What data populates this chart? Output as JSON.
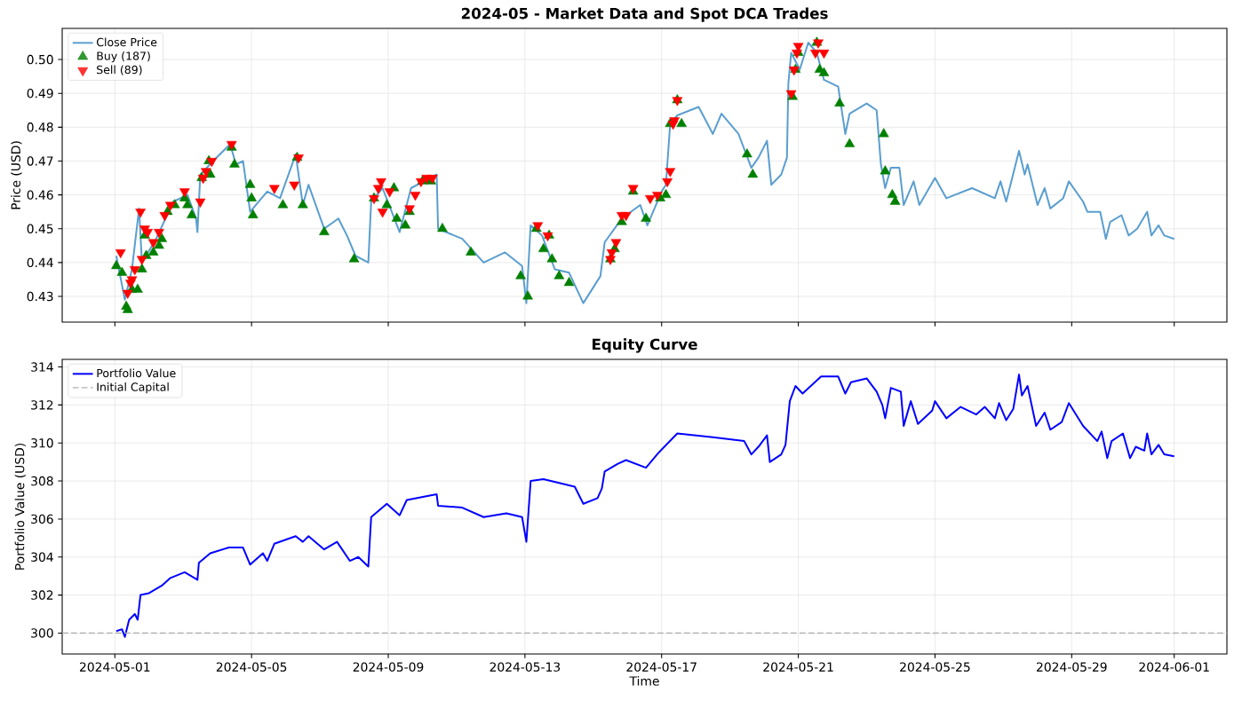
{
  "chart_data": [
    {
      "type": "line",
      "title": "2024-05 - Market Data and Spot DCA Trades",
      "ylabel": "Price (USD)",
      "xlim": [
        "2024-04-29T11:00",
        "2024-06-02T13:00"
      ],
      "ylim": [
        0.4224,
        0.5092
      ],
      "xticks": [
        "2024-05-01",
        "2024-05-05",
        "2024-05-09",
        "2024-05-13",
        "2024-05-17",
        "2024-05-21",
        "2024-05-25",
        "2024-05-29",
        "2024-06-01"
      ],
      "yticks": [
        0.43,
        0.44,
        0.45,
        0.46,
        0.47,
        0.48,
        0.49,
        {
          "value": 0.5,
          "label": "0.50"
        }
      ],
      "tick_labels": "y",
      "grid": true,
      "legend": "top left",
      "series": [
        {
          "name": "Close Price",
          "color": "#5a9ecf",
          "marker": "none",
          "line_style": "solid",
          "x": [
            "2024-05-01T01:00",
            "2024-05-01T07:00",
            "2024-05-01T12:00",
            "2024-05-01T17:00",
            "2024-05-01T19:00",
            "2024-05-02T05:00",
            "2024-05-02T17:00",
            "2024-05-03T03:00",
            "2024-05-03T09:00",
            "2024-05-03T10:00",
            "2024-05-03T12:00",
            "2024-05-03T21:00",
            "2024-05-04T09:00",
            "2024-05-04T13:00",
            "2024-05-04T18:00",
            "2024-05-04T23:00",
            "2024-05-05T11:00",
            "2024-05-05T20:00",
            "2024-05-06T07:00",
            "2024-05-06T12:00",
            "2024-05-06T16:00",
            "2024-05-07T03:00",
            "2024-05-07T13:00",
            "2024-05-07T19:00",
            "2024-05-08T01:00",
            "2024-05-08T10:00",
            "2024-05-08T12:00",
            "2024-05-08T20:00",
            "2024-05-09T08:00",
            "2024-05-09T16:00",
            "2024-05-10T10:00",
            "2024-05-10T11:00",
            "2024-05-11T04:00",
            "2024-05-11T19:00",
            "2024-05-12T10:00",
            "2024-05-12T22:00",
            "2024-05-13T01:00",
            "2024-05-13T04:00",
            "2024-05-13T12:00",
            "2024-05-13T21:00",
            "2024-05-14T07:00",
            "2024-05-14T17:00",
            "2024-05-15T05:00",
            "2024-05-15T08:00",
            "2024-05-15T20:00",
            "2024-05-16T09:00",
            "2024-05-16T14:00",
            "2024-05-17T00:00",
            "2024-05-17T03:00",
            "2024-05-17T06:00",
            "2024-05-17T11:00",
            "2024-05-18T02:00",
            "2024-05-18T12:00",
            "2024-05-18T18:00",
            "2024-05-19T06:00",
            "2024-05-19T15:00",
            "2024-05-19T20:00",
            "2024-05-20T02:00",
            "2024-05-20T05:00",
            "2024-05-20T12:00",
            "2024-05-20T16:00",
            "2024-05-20T17:00",
            "2024-05-20T19:00",
            "2024-05-21T01:00",
            "2024-05-21T07:00",
            "2024-05-21T13:00",
            "2024-05-21T18:00",
            "2024-05-22T04:00",
            "2024-05-22T09:00",
            "2024-05-22T12:00",
            "2024-05-23T00:00",
            "2024-05-23T07:00",
            "2024-05-23T10:00",
            "2024-05-23T13:00",
            "2024-05-23T17:00",
            "2024-05-23T23:00",
            "2024-05-24T02:00",
            "2024-05-24T09:00",
            "2024-05-24T13:00",
            "2024-05-25T00:00",
            "2024-05-25T08:00",
            "2024-05-26T02:00",
            "2024-05-26T18:00",
            "2024-05-26T22:00",
            "2024-05-27T02:00",
            "2024-05-27T11:00",
            "2024-05-27T15:00",
            "2024-05-27T17:00",
            "2024-05-28T00:00",
            "2024-05-28T05:00",
            "2024-05-28T09:00",
            "2024-05-28T18:00",
            "2024-05-28T22:00",
            "2024-05-29T08:00",
            "2024-05-29T11:00",
            "2024-05-29T20:00",
            "2024-05-30T00:00",
            "2024-05-30T03:00",
            "2024-05-30T11:00",
            "2024-05-30T16:00",
            "2024-05-30T22:00",
            "2024-05-31T05:00",
            "2024-05-31T08:00",
            "2024-05-31T13:00",
            "2024-05-31T17:00",
            "2024-06-01T00:00"
          ],
          "values": [
            0.442,
            0.429,
            0.438,
            0.456,
            0.44,
            0.447,
            0.458,
            0.46,
            0.453,
            0.449,
            0.466,
            0.47,
            0.475,
            0.469,
            0.47,
            0.455,
            0.461,
            0.459,
            0.472,
            0.457,
            0.463,
            0.45,
            0.453,
            0.448,
            0.442,
            0.44,
            0.458,
            0.462,
            0.449,
            0.462,
            0.466,
            0.45,
            0.447,
            0.44,
            0.443,
            0.439,
            0.428,
            0.451,
            0.448,
            0.438,
            0.437,
            0.428,
            0.436,
            0.446,
            0.453,
            0.457,
            0.451,
            0.461,
            0.463,
            0.481,
            0.4835,
            0.486,
            0.478,
            0.484,
            0.478,
            0.468,
            0.471,
            0.476,
            0.463,
            0.466,
            0.471,
            0.493,
            0.502,
            0.497,
            0.505,
            0.502,
            0.494,
            0.492,
            0.478,
            0.484,
            0.487,
            0.485,
            0.469,
            0.462,
            0.468,
            0.468,
            0.457,
            0.464,
            0.457,
            0.465,
            0.459,
            0.462,
            0.459,
            0.464,
            0.458,
            0.473,
            0.466,
            0.469,
            0.457,
            0.462,
            0.456,
            0.459,
            0.464,
            0.458,
            0.455,
            0.455,
            0.447,
            0.452,
            0.454,
            0.448,
            0.45,
            0.455,
            0.448,
            0.451,
            0.448,
            0.447
          ]
        },
        {
          "name": "Buy (187)",
          "type": "scatter",
          "color": "#008000",
          "marker": "triangle",
          "x": [
            "2024-05-01T01:00",
            "2024-05-01T05:00",
            "2024-05-01T08:00",
            "2024-05-01T09:00",
            "2024-05-01T12:00",
            "2024-05-01T16:00",
            "2024-05-01T19:00",
            "2024-05-01T21:00",
            "2024-05-01T22:00",
            "2024-05-02T03:00",
            "2024-05-02T07:00",
            "2024-05-02T09:00",
            "2024-05-02T13:00",
            "2024-05-02T18:00",
            "2024-05-03T01:00",
            "2024-05-03T03:00",
            "2024-05-03T06:00",
            "2024-05-03T13:00",
            "2024-05-03T18:00",
            "2024-05-03T19:00",
            "2024-05-04T10:00",
            "2024-05-04T12:00",
            "2024-05-04T23:00",
            "2024-05-05T00:00",
            "2024-05-05T01:00",
            "2024-05-05T22:00",
            "2024-05-06T08:00",
            "2024-05-06T12:00",
            "2024-05-07T03:00",
            "2024-05-08T00:00",
            "2024-05-08T14:00",
            "2024-05-08T23:00",
            "2024-05-09T04:00",
            "2024-05-09T06:00",
            "2024-05-09T12:00",
            "2024-05-09T15:00",
            "2024-05-10T00:00",
            "2024-05-10T06:00",
            "2024-05-10T14:00",
            "2024-05-11T10:00",
            "2024-05-12T21:00",
            "2024-05-13T02:00",
            "2024-05-13T08:00",
            "2024-05-13T13:00",
            "2024-05-13T17:00",
            "2024-05-13T19:00",
            "2024-05-14T00:00",
            "2024-05-14T07:00",
            "2024-05-15T12:00",
            "2024-05-15T15:00",
            "2024-05-15T20:00",
            "2024-05-16T04:00",
            "2024-05-16T13:00",
            "2024-05-16T23:00",
            "2024-05-17T03:00",
            "2024-05-17T06:00",
            "2024-05-17T11:00",
            "2024-05-17T14:00",
            "2024-05-19T12:00",
            "2024-05-19T16:00",
            "2024-05-20T20:00",
            "2024-05-20T22:00",
            "2024-05-21T00:00",
            "2024-05-21T13:00",
            "2024-05-21T15:00",
            "2024-05-21T18:00",
            "2024-05-22T05:00",
            "2024-05-22T12:00",
            "2024-05-23T12:00",
            "2024-05-23T13:00",
            "2024-05-23T18:00",
            "2024-05-23T20:00"
          ],
          "values": [
            0.439,
            0.437,
            0.427,
            0.426,
            0.432,
            0.432,
            0.438,
            0.448,
            0.442,
            0.443,
            0.445,
            0.447,
            0.455,
            0.457,
            0.459,
            0.457,
            0.454,
            0.465,
            0.47,
            0.466,
            0.474,
            0.469,
            0.463,
            0.459,
            0.454,
            0.457,
            0.471,
            0.457,
            0.449,
            0.441,
            0.459,
            0.457,
            0.462,
            0.453,
            0.451,
            0.455,
            0.464,
            0.464,
            0.45,
            0.443,
            0.436,
            0.43,
            0.45,
            0.444,
            0.448,
            0.441,
            0.436,
            0.434,
            0.441,
            0.444,
            0.452,
            0.461,
            0.453,
            0.459,
            0.46,
            0.481,
            0.488,
            0.481,
            0.472,
            0.466,
            0.489,
            0.497,
            0.502,
            0.505,
            0.497,
            0.496,
            0.487,
            0.475,
            0.478,
            0.467,
            0.46,
            0.458
          ]
        },
        {
          "name": "Sell (89)",
          "type": "scatter",
          "color": "#ff0000",
          "marker": "triangle_down",
          "x": [
            "2024-05-01T04:00",
            "2024-05-01T09:00",
            "2024-05-01T11:00",
            "2024-05-01T12:00",
            "2024-05-01T14:00",
            "2024-05-01T18:00",
            "2024-05-01T19:00",
            "2024-05-01T21:00",
            "2024-05-01T23:00",
            "2024-05-02T03:00",
            "2024-05-02T07:00",
            "2024-05-02T11:00",
            "2024-05-02T15:00",
            "2024-05-03T01:00",
            "2024-05-03T12:00",
            "2024-05-03T14:00",
            "2024-05-03T16:00",
            "2024-05-03T20:00",
            "2024-05-04T10:00",
            "2024-05-05T16:00",
            "2024-05-06T06:00",
            "2024-05-06T09:00",
            "2024-05-08T14:00",
            "2024-05-08T17:00",
            "2024-05-08T19:00",
            "2024-05-08T20:00",
            "2024-05-09T01:00",
            "2024-05-09T15:00",
            "2024-05-09T19:00",
            "2024-05-09T23:00",
            "2024-05-10T03:00",
            "2024-05-10T07:00",
            "2024-05-13T09:00",
            "2024-05-13T16:00",
            "2024-05-15T12:00",
            "2024-05-15T13:00",
            "2024-05-15T16:00",
            "2024-05-15T20:00",
            "2024-05-15T23:00",
            "2024-05-16T04:00",
            "2024-05-16T16:00",
            "2024-05-16T21:00",
            "2024-05-17T04:00",
            "2024-05-17T06:00",
            "2024-05-17T08:00",
            "2024-05-17T09:00",
            "2024-05-17T11:00",
            "2024-05-20T19:00",
            "2024-05-20T21:00",
            "2024-05-20T23:00",
            "2024-05-21T00:00",
            "2024-05-21T12:00",
            "2024-05-21T14:00",
            "2024-05-21T18:00"
          ],
          "values": [
            0.443,
            0.431,
            0.434,
            0.435,
            0.438,
            0.455,
            0.441,
            0.45,
            0.449,
            0.446,
            0.449,
            0.454,
            0.457,
            0.461,
            0.458,
            0.465,
            0.467,
            0.47,
            0.475,
            0.462,
            0.463,
            0.471,
            0.459,
            0.462,
            0.464,
            0.455,
            0.461,
            0.456,
            0.46,
            0.464,
            0.465,
            0.465,
            0.451,
            0.448,
            0.441,
            0.443,
            0.446,
            0.454,
            0.454,
            0.462,
            0.459,
            0.46,
            0.464,
            0.467,
            0.481,
            0.482,
            0.488,
            0.49,
            0.497,
            0.502,
            0.504,
            0.502,
            0.505,
            0.502
          ]
        }
      ]
    },
    {
      "type": "line",
      "title": "Equity Curve",
      "xlabel": "Time",
      "ylabel": "Portfolio Value (USD)",
      "xlim": [
        "2024-04-29T11:00",
        "2024-06-02T13:00"
      ],
      "ylim": [
        298.9,
        314.4
      ],
      "xticks": [
        "2024-05-01",
        "2024-05-05",
        "2024-05-09",
        "2024-05-13",
        "2024-05-17",
        "2024-05-21",
        "2024-05-25",
        "2024-05-29",
        "2024-06-01"
      ],
      "yticks": [
        300,
        302,
        304,
        306,
        308,
        310,
        312,
        314
      ],
      "grid": true,
      "legend": "top left",
      "ref_lines": [
        {
          "axis": "y",
          "value": 300,
          "label": "Initial Capital",
          "color": "#b0b0b0",
          "line_style": "dashed"
        }
      ],
      "series": [
        {
          "name": "Portfolio Value",
          "color": "#0000ff",
          "marker": "none",
          "line_style": "solid",
          "x": [
            "2024-05-01T01:00",
            "2024-05-01T05:00",
            "2024-05-01T07:00",
            "2024-05-01T10:00",
            "2024-05-01T14:00",
            "2024-05-01T16:00",
            "2024-05-01T18:00",
            "2024-05-02T00:00",
            "2024-05-02T09:00",
            "2024-05-02T15:00",
            "2024-05-03T01:00",
            "2024-05-03T10:00",
            "2024-05-03T11:00",
            "2024-05-03T19:00",
            "2024-05-04T08:00",
            "2024-05-04T18:00",
            "2024-05-04T23:00",
            "2024-05-05T08:00",
            "2024-05-05T11:00",
            "2024-05-05T16:00",
            "2024-05-06T07:00",
            "2024-05-06T12:00",
            "2024-05-06T16:00",
            "2024-05-07T03:00",
            "2024-05-07T12:00",
            "2024-05-07T21:00",
            "2024-05-08T03:00",
            "2024-05-08T10:00",
            "2024-05-08T12:00",
            "2024-05-08T23:00",
            "2024-05-09T08:00",
            "2024-05-09T13:00",
            "2024-05-10T10:00",
            "2024-05-10T11:00",
            "2024-05-11T04:00",
            "2024-05-11T19:00",
            "2024-05-12T11:00",
            "2024-05-12T22:00",
            "2024-05-13T01:00",
            "2024-05-13T04:00",
            "2024-05-13T13:00",
            "2024-05-14T11:00",
            "2024-05-14T17:00",
            "2024-05-15T03:00",
            "2024-05-15T06:00",
            "2024-05-15T08:00",
            "2024-05-15T17:00",
            "2024-05-15T23:00",
            "2024-05-16T13:00",
            "2024-05-16T22:00",
            "2024-05-17T11:00",
            "2024-05-18T12:00",
            "2024-05-19T10:00",
            "2024-05-19T15:00",
            "2024-05-19T20:00",
            "2024-05-20T02:00",
            "2024-05-20T04:00",
            "2024-05-20T12:00",
            "2024-05-20T15:00",
            "2024-05-20T18:00",
            "2024-05-20T22:00",
            "2024-05-21T03:00",
            "2024-05-21T16:00",
            "2024-05-22T04:00",
            "2024-05-22T09:00",
            "2024-05-22T13:00",
            "2024-05-23T00:00",
            "2024-05-23T07:00",
            "2024-05-23T11:00",
            "2024-05-23T13:00",
            "2024-05-23T17:00",
            "2024-05-24T00:00",
            "2024-05-24T02:00",
            "2024-05-24T07:00",
            "2024-05-24T12:00",
            "2024-05-24T22:00",
            "2024-05-25T00:00",
            "2024-05-25T08:00",
            "2024-05-25T18:00",
            "2024-05-26T05:00",
            "2024-05-26T11:00",
            "2024-05-26T18:00",
            "2024-05-26T21:00",
            "2024-05-27T02:00",
            "2024-05-27T07:00",
            "2024-05-27T11:00",
            "2024-05-27T13:00",
            "2024-05-27T17:00",
            "2024-05-27T23:00",
            "2024-05-28T05:00",
            "2024-05-28T09:00",
            "2024-05-28T17:00",
            "2024-05-28T22:00",
            "2024-05-29T08:00",
            "2024-05-29T18:00",
            "2024-05-29T21:00",
            "2024-05-30T01:00",
            "2024-05-30T04:00",
            "2024-05-30T12:00",
            "2024-05-30T17:00",
            "2024-05-30T21:00",
            "2024-05-31T03:00",
            "2024-05-31T05:00",
            "2024-05-31T08:00",
            "2024-05-31T13:00",
            "2024-05-31T17:00",
            "2024-06-01T00:00"
          ],
          "values": [
            300.1,
            300.2,
            299.8,
            300.7,
            301.0,
            300.7,
            302.0,
            302.1,
            302.5,
            302.9,
            303.2,
            302.8,
            303.7,
            304.2,
            304.5,
            304.5,
            303.6,
            304.2,
            303.8,
            304.7,
            305.1,
            304.8,
            305.1,
            304.4,
            304.8,
            303.8,
            304.0,
            303.5,
            306.1,
            306.8,
            306.2,
            307.0,
            307.3,
            306.7,
            306.6,
            306.1,
            306.3,
            306.1,
            304.8,
            308.0,
            308.1,
            307.7,
            306.8,
            307.1,
            307.6,
            308.5,
            308.9,
            309.1,
            308.7,
            309.5,
            310.5,
            310.3,
            310.1,
            309.4,
            309.8,
            310.4,
            309.0,
            309.4,
            309.9,
            312.2,
            313.0,
            312.6,
            313.5,
            313.5,
            312.6,
            313.2,
            313.4,
            312.7,
            312.0,
            311.3,
            312.9,
            312.7,
            310.9,
            312.2,
            311.0,
            311.7,
            312.2,
            311.3,
            311.9,
            311.5,
            311.9,
            311.3,
            312.1,
            311.2,
            311.8,
            313.6,
            312.5,
            313.0,
            310.9,
            311.6,
            310.7,
            311.1,
            312.1,
            310.9,
            310.1,
            310.6,
            309.2,
            310.1,
            310.5,
            309.2,
            309.8,
            309.6,
            310.5,
            309.4,
            309.9,
            309.4,
            309.3
          ]
        }
      ]
    }
  ]
}
